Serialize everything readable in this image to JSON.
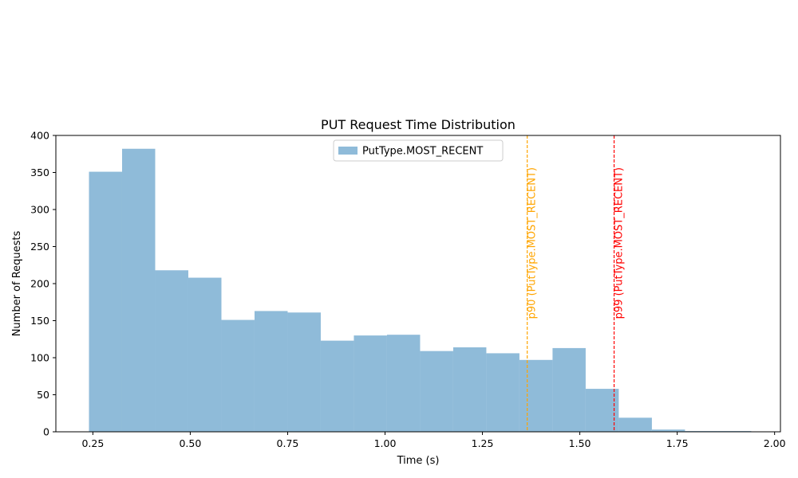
{
  "chart_data": {
    "type": "bar",
    "title": "PUT Request Time Distribution",
    "xlabel": "Time (s)",
    "ylabel": "Number of Requests",
    "xlim": [
      0.155,
      2.015
    ],
    "ylim": [
      0,
      400
    ],
    "xticks": [
      "0.25",
      "0.50",
      "0.75",
      "1.00",
      "1.25",
      "1.50",
      "1.75",
      "2.00"
    ],
    "xtick_values": [
      0.25,
      0.5,
      0.75,
      1.0,
      1.25,
      1.5,
      1.75,
      2.0
    ],
    "yticks": [
      "0",
      "50",
      "100",
      "150",
      "200",
      "250",
      "300",
      "350",
      "400"
    ],
    "ytick_values": [
      0,
      50,
      100,
      150,
      200,
      250,
      300,
      350,
      400
    ],
    "grid": false,
    "legend_placement": "top-center",
    "series": [
      {
        "name": "PutType.MOST_RECENT",
        "color": "#8fbbd9",
        "bin_edges": [
          0.24,
          0.325,
          0.41,
          0.495,
          0.58,
          0.665,
          0.75,
          0.835,
          0.92,
          1.005,
          1.09,
          1.175,
          1.26,
          1.345,
          1.43,
          1.515,
          1.6,
          1.685,
          1.77,
          1.855,
          1.94
        ],
        "values": [
          351,
          382,
          218,
          208,
          151,
          163,
          161,
          123,
          130,
          131,
          109,
          114,
          106,
          97,
          113,
          58,
          19,
          3,
          1,
          1
        ]
      }
    ],
    "vlines": [
      {
        "label": "p90 (PutType.MOST_RECENT)",
        "x": 1.365,
        "color": "#ffa500"
      },
      {
        "label": "p99 (PutType.MOST_RECENT)",
        "x": 1.588,
        "color": "#ff0000"
      }
    ]
  }
}
